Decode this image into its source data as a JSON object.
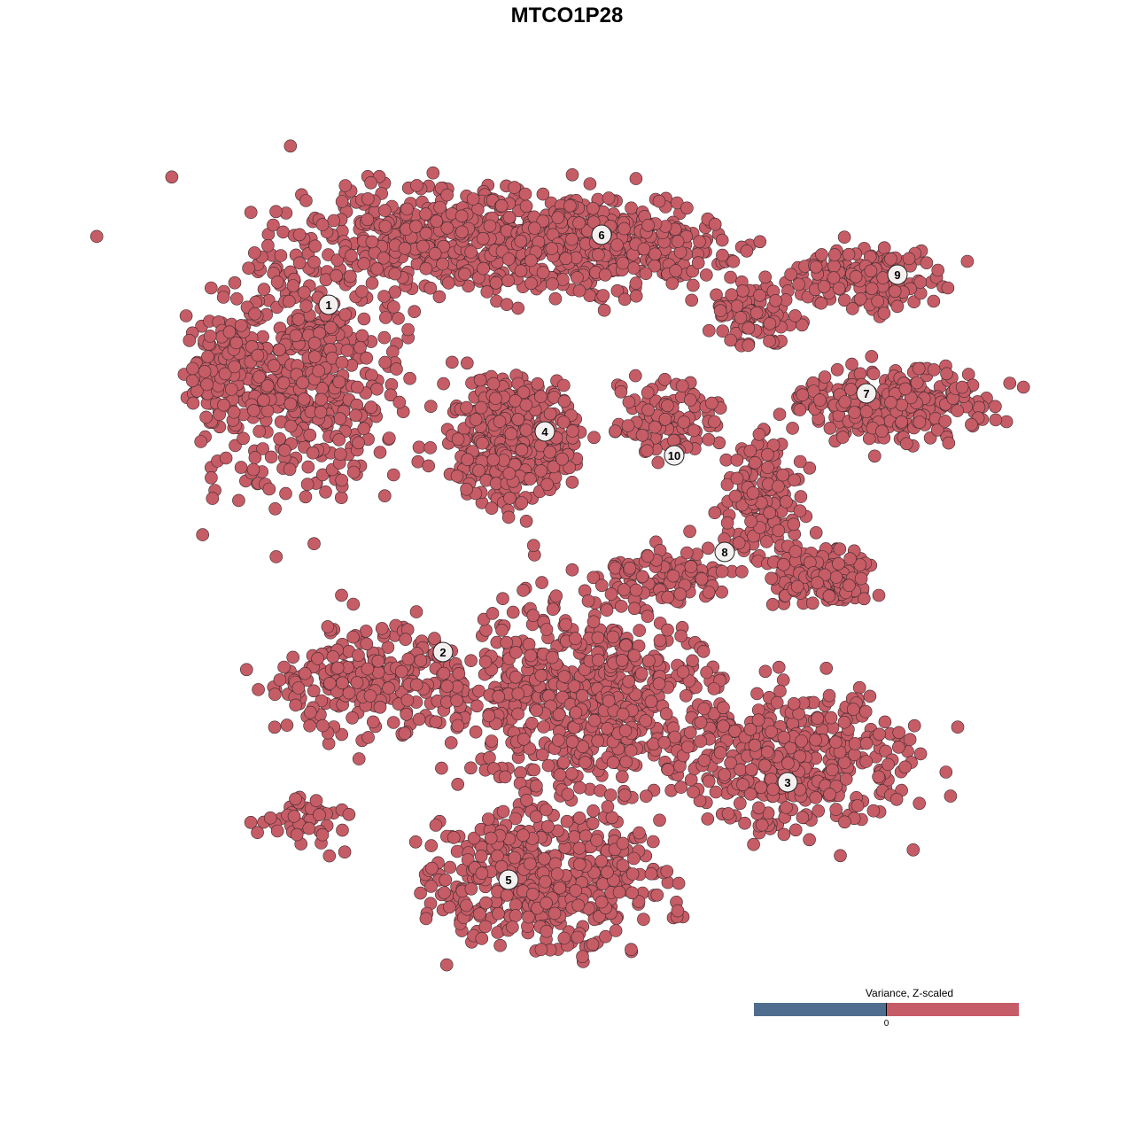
{
  "chart_data": {
    "type": "scatter",
    "title": "MTCO1P28",
    "xlabel": "",
    "ylabel": "",
    "grid": false,
    "point_color": "#c65c66",
    "point_edge_color": "#3a2a2c",
    "cluster_labels": [
      "1",
      "2",
      "3",
      "4",
      "5",
      "6",
      "7",
      "8",
      "9",
      "10"
    ],
    "legend": {
      "title": "Variance, Z-scaled",
      "tick_label": "0",
      "low_color": "#4f6d8f",
      "high_color": "#c65c68",
      "placement": "bottom-right"
    }
  }
}
